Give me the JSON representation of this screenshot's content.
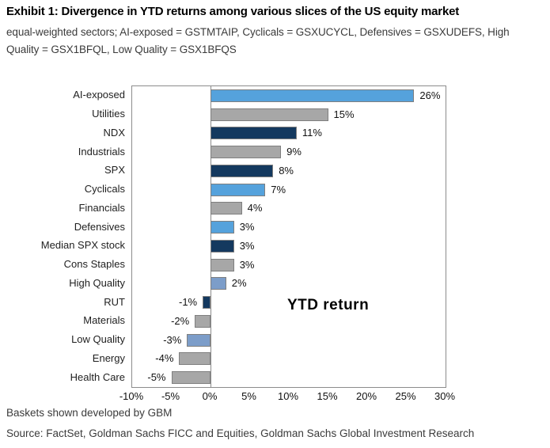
{
  "header": {
    "title": "Exhibit 1: Divergence in YTD returns among various slices of the US equity market",
    "subtitle": "equal-weighted sectors; AI-exposed = GSTMTAIP, Cyclicals = GSXUCYCL, Defensives = GSXUDEFS, High Quality = GSX1BFQL, Low Quality = GSX1BFQS"
  },
  "chart_data": {
    "type": "bar",
    "orientation": "horizontal",
    "title": "Exhibit 1: Divergence in YTD returns among various slices of the US equity market",
    "annotation": "YTD return",
    "categories": [
      "AI-exposed",
      "Utilities",
      "NDX",
      "Industrials",
      "SPX",
      "Cyclicals",
      "Financials",
      "Defensives",
      "Median SPX stock",
      "Cons Staples",
      "High Quality",
      "RUT",
      "Materials",
      "Low Quality",
      "Energy",
      "Health Care"
    ],
    "values": [
      26,
      15,
      11,
      9,
      8,
      7,
      4,
      3,
      3,
      3,
      2,
      -1,
      -2,
      -3,
      -4,
      -5
    ],
    "value_labels": [
      "26%",
      "15%",
      "11%",
      "9%",
      "8%",
      "7%",
      "4%",
      "3%",
      "3%",
      "3%",
      "2%",
      "-1%",
      "-2%",
      "-3%",
      "-4%",
      "-5%"
    ],
    "color_keys": [
      "light_blue",
      "gray",
      "navy",
      "gray",
      "navy",
      "light_blue",
      "gray",
      "light_blue",
      "navy",
      "gray",
      "medium_blue",
      "navy",
      "gray",
      "medium_blue",
      "gray",
      "gray"
    ],
    "palette": {
      "light_blue": "#55A2DC",
      "gray": "#A7A7A7",
      "navy": "#14395F",
      "medium_blue": "#7C9DC9",
      "bar_border": "#7F7F7F",
      "plot_border": "#8C8C8C"
    },
    "x_ticks": [
      "-10%",
      "-5%",
      "0%",
      "5%",
      "10%",
      "15%",
      "20%",
      "25%",
      "30%"
    ],
    "xlim": [
      -10,
      30
    ],
    "grid": false,
    "legend": false
  },
  "footer": {
    "note": "Baskets shown developed by GBM",
    "source": "Source: FactSet, Goldman Sachs FICC and Equities, Goldman Sachs Global Investment Research"
  }
}
